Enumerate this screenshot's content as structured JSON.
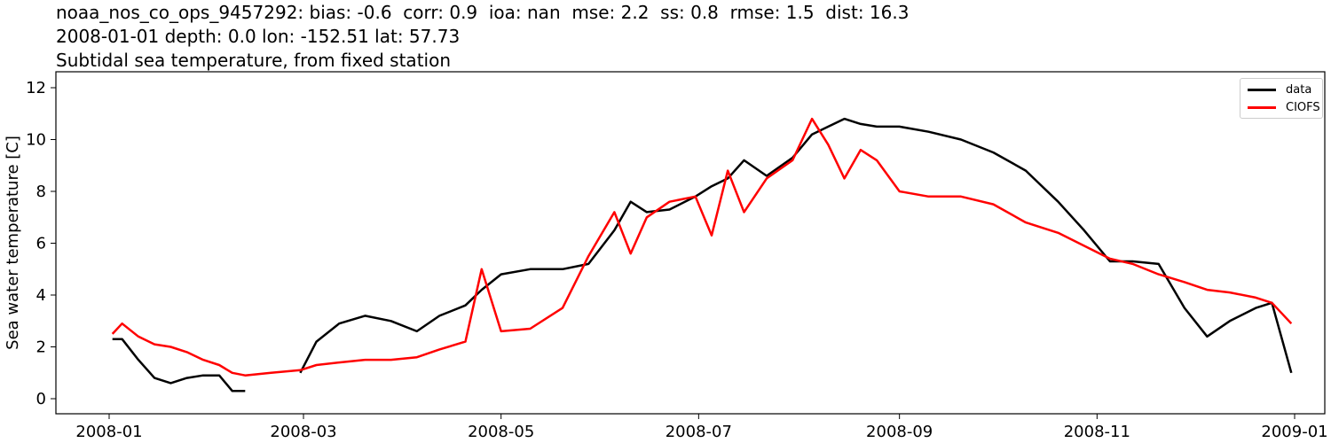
{
  "title": {
    "line1": "noaa_nos_co_ops_9457292: bias: -0.6  corr: 0.9  ioa: nan  mse: 2.2  ss: 0.8  rmse: 1.5  dist: 16.3",
    "line2": "2008-01-01 depth: 0.0 lon: -152.51 lat: 57.73",
    "line3": "Subtidal sea temperature, from fixed station"
  },
  "legend": [
    {
      "label": "data",
      "color": "#000000"
    },
    {
      "label": "CIOFS",
      "color": "#ff0000"
    }
  ],
  "chart_data": {
    "type": "line",
    "title": "noaa_nos_co_ops_9457292: bias: -0.6  corr: 0.9  ioa: nan  mse: 2.2  ss: 0.8  rmse: 1.5  dist: 16.3 / 2008-01-01 depth: 0.0 lon: -152.51 lat: 57.73 / Subtidal sea temperature, from fixed station",
    "xlabel": "",
    "ylabel": "Sea water temperature [C]",
    "xticks": [
      "2008-01",
      "2008-03",
      "2008-05",
      "2008-07",
      "2008-09",
      "2008-11",
      "2009-01"
    ],
    "yticks": [
      0,
      2,
      4,
      6,
      8,
      10,
      12
    ],
    "ylim": [
      -0.6,
      12.6
    ],
    "xlim": [
      "2007-12-15",
      "2009-01-17"
    ],
    "grid": false,
    "legend_position": "upper right",
    "x": [
      "2008-01-02",
      "2008-01-05",
      "2008-01-10",
      "2008-01-15",
      "2008-01-20",
      "2008-01-25",
      "2008-01-30",
      "2008-02-04",
      "2008-02-08",
      "2008-02-12",
      "2008-02-20",
      "2008-02-29",
      "2008-03-05",
      "2008-03-12",
      "2008-03-20",
      "2008-03-28",
      "2008-04-05",
      "2008-04-12",
      "2008-04-20",
      "2008-04-25",
      "2008-05-01",
      "2008-05-10",
      "2008-05-20",
      "2008-05-28",
      "2008-06-05",
      "2008-06-10",
      "2008-06-15",
      "2008-06-22",
      "2008-06-30",
      "2008-07-05",
      "2008-07-10",
      "2008-07-15",
      "2008-07-22",
      "2008-07-30",
      "2008-08-05",
      "2008-08-10",
      "2008-08-15",
      "2008-08-20",
      "2008-08-25",
      "2008-09-01",
      "2008-09-10",
      "2008-09-20",
      "2008-09-30",
      "2008-10-10",
      "2008-10-20",
      "2008-10-28",
      "2008-11-05",
      "2008-11-12",
      "2008-11-20",
      "2008-11-28",
      "2008-12-05",
      "2008-12-12",
      "2008-12-20",
      "2008-12-25",
      "2008-12-31"
    ],
    "series": [
      {
        "name": "data",
        "color": "#000000",
        "values": [
          2.3,
          2.3,
          1.5,
          0.8,
          0.6,
          0.8,
          0.9,
          0.9,
          0.3,
          0.3,
          null,
          1.0,
          2.2,
          2.9,
          3.2,
          3.0,
          2.6,
          3.2,
          3.6,
          4.2,
          4.8,
          5.0,
          5.0,
          5.2,
          6.5,
          7.6,
          7.2,
          7.3,
          7.8,
          8.2,
          8.5,
          9.2,
          8.6,
          9.3,
          10.2,
          10.5,
          10.8,
          10.6,
          10.5,
          10.5,
          10.3,
          10.0,
          9.5,
          8.8,
          7.6,
          6.5,
          5.3,
          5.3,
          5.2,
          3.5,
          2.4,
          3.0,
          3.5,
          3.7,
          1.0
        ]
      },
      {
        "name": "CIOFS",
        "color": "#ff0000",
        "values": [
          2.5,
          2.9,
          2.4,
          2.1,
          2.0,
          1.8,
          1.5,
          1.3,
          1.0,
          0.9,
          1.0,
          1.1,
          1.3,
          1.4,
          1.5,
          1.5,
          1.6,
          1.9,
          2.2,
          5.0,
          2.6,
          2.7,
          3.5,
          5.5,
          7.2,
          5.6,
          7.0,
          7.6,
          7.8,
          6.3,
          8.8,
          7.2,
          8.5,
          9.2,
          10.8,
          9.8,
          8.5,
          9.6,
          9.2,
          8.0,
          7.8,
          7.8,
          7.5,
          6.8,
          6.4,
          5.9,
          5.4,
          5.2,
          4.8,
          4.5,
          4.2,
          4.1,
          3.9,
          3.7,
          2.9
        ]
      }
    ]
  }
}
